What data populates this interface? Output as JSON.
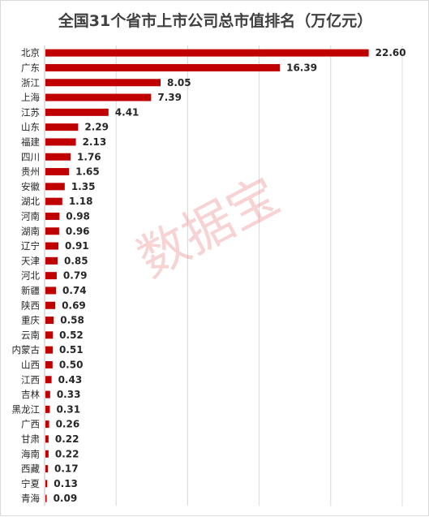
{
  "chart_data": {
    "type": "bar",
    "orientation": "horizontal",
    "title": "全国31个省市上市公司总市值排名（万亿元）",
    "xlabel": "",
    "ylabel": "",
    "categories": [
      "北京",
      "广东",
      "浙江",
      "上海",
      "江苏",
      "山东",
      "福建",
      "四川",
      "贵州",
      "安徽",
      "湖北",
      "河南",
      "湖南",
      "辽宁",
      "天津",
      "河北",
      "新疆",
      "陕西",
      "重庆",
      "云南",
      "内蒙古",
      "山西",
      "江西",
      "吉林",
      "黑龙江",
      "广西",
      "甘肃",
      "海南",
      "西藏",
      "宁夏",
      "青海"
    ],
    "value_labels": [
      "22.60",
      "16.39",
      "8.05",
      "7.39",
      "4.41",
      "2.29",
      "2.13",
      "1.76",
      "1.65",
      "1.35",
      "1.18",
      "0.98",
      "0.96",
      "0.91",
      "0.85",
      "0.79",
      "0.74",
      "0.69",
      "0.58",
      "0.52",
      "0.51",
      "0.50",
      "0.43",
      "0.33",
      "0.31",
      "0.26",
      "0.22",
      "0.22",
      "0.17",
      "0.13",
      "0.09"
    ],
    "values": [
      22.6,
      16.39,
      8.05,
      7.39,
      4.41,
      2.29,
      2.13,
      1.76,
      1.65,
      1.35,
      1.18,
      0.98,
      0.96,
      0.91,
      0.85,
      0.79,
      0.74,
      0.69,
      0.58,
      0.52,
      0.51,
      0.5,
      0.43,
      0.33,
      0.31,
      0.26,
      0.22,
      0.22,
      0.17,
      0.13,
      0.09
    ],
    "xlim": [
      0,
      25
    ],
    "grid": true,
    "bar_color": "#c00000",
    "legend": "none"
  },
  "watermark": "数据宝"
}
